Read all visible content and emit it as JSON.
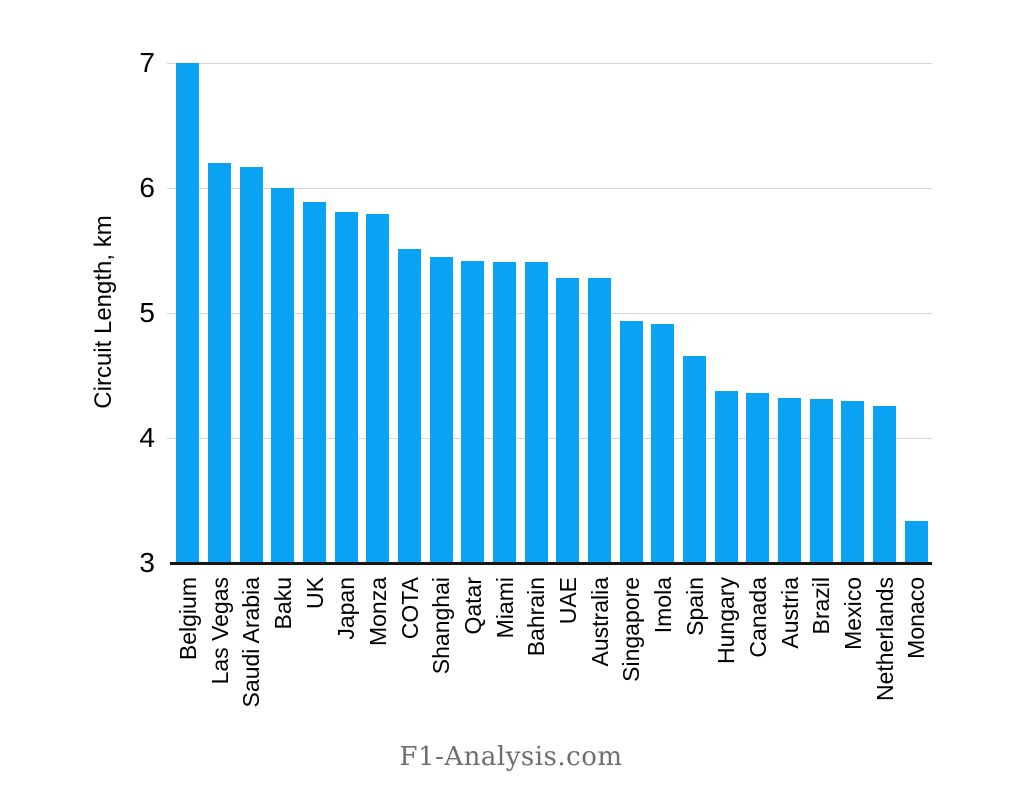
{
  "page": {
    "background": "#ffffff"
  },
  "chart_data": {
    "type": "bar",
    "title": "",
    "xlabel": "",
    "ylabel": "Circuit Length, km",
    "ylim": [
      3,
      7
    ],
    "yticks": [
      3,
      4,
      5,
      6,
      7
    ],
    "grid": true,
    "legend_position": "none",
    "bar_color": "#0aa3f3",
    "categories": [
      "Belgium",
      "Las Vegas",
      "Saudi Arabia",
      "Baku",
      "UK",
      "Japan",
      "Monza",
      "COTA",
      "Shanghai",
      "Qatar",
      "Miami",
      "Bahrain",
      "UAE",
      "Australia",
      "Singapore",
      "Imola",
      "Spain",
      "Hungary",
      "Canada",
      "Austria",
      "Brazil",
      "Mexico",
      "Netherlands",
      "Monaco"
    ],
    "values": [
      7.0,
      6.2,
      6.17,
      6.0,
      5.89,
      5.81,
      5.79,
      5.51,
      5.45,
      5.42,
      5.41,
      5.41,
      5.28,
      5.28,
      4.94,
      4.91,
      4.66,
      4.38,
      4.36,
      4.32,
      4.31,
      4.3,
      4.26,
      3.34
    ]
  },
  "footer": {
    "brand": "F1-Analysis.com"
  },
  "colors": {
    "bar": "#0aa3f3",
    "gridline": "#d7d7d7",
    "axis_line": "#161616",
    "text": "#000000",
    "footer_text": "#6e6e6e"
  }
}
